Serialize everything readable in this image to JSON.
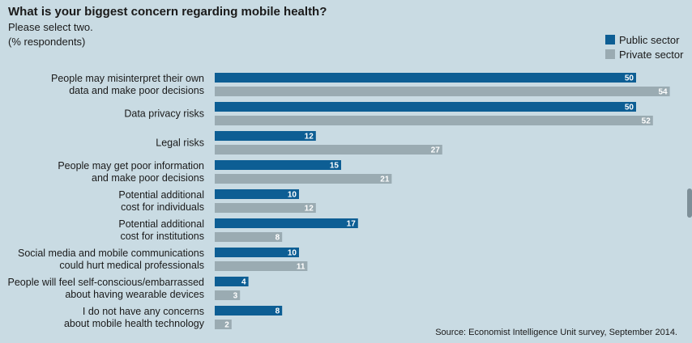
{
  "title": "What is your biggest concern regarding mobile health?",
  "subtitle_lines": [
    "Please select two.",
    "(% respondents)"
  ],
  "source": "Source: Economist Intelligence Unit survey, September 2014.",
  "legend": [
    {
      "label": "Public sector",
      "color": "#0d5e94"
    },
    {
      "label": "Private sector",
      "color": "#9aabb2"
    }
  ],
  "chart_data": {
    "type": "bar",
    "orientation": "horizontal",
    "title": "What is your biggest concern regarding mobile health?",
    "categories": [
      [
        "People may misinterpret their own",
        "data and make poor decisions"
      ],
      [
        "Data privacy risks"
      ],
      [
        "Legal risks"
      ],
      [
        "People may get poor information",
        "and make poor decisions"
      ],
      [
        "Potential additional",
        "cost for individuals"
      ],
      [
        "Potential additional",
        "cost for institutions"
      ],
      [
        "Social media and mobile communications",
        "could hurt medical professionals"
      ],
      [
        "People will feel self-conscious/embarrassed",
        "about having wearable devices"
      ],
      [
        "I do not have any concerns",
        "about mobile health technology"
      ]
    ],
    "series": [
      {
        "name": "Public sector",
        "color": "#0d5e94",
        "values": [
          50,
          50,
          12,
          15,
          10,
          17,
          10,
          4,
          8
        ]
      },
      {
        "name": "Private sector",
        "color": "#9aabb2",
        "values": [
          54,
          52,
          27,
          21,
          12,
          8,
          11,
          3,
          2
        ]
      }
    ],
    "xlim": [
      0,
      55
    ],
    "legend_position": "top-right",
    "grid": false
  }
}
